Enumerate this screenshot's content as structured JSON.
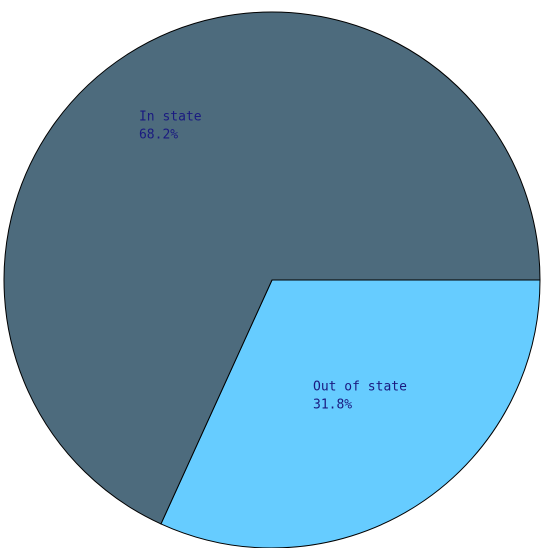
{
  "chart_data": {
    "type": "pie",
    "categories": [
      "In state",
      "Out of state"
    ],
    "values": [
      68.2,
      31.8
    ],
    "value_labels": [
      "68.2%",
      "31.8%"
    ],
    "colors": [
      "#4d6b7d",
      "#66ccff"
    ]
  }
}
